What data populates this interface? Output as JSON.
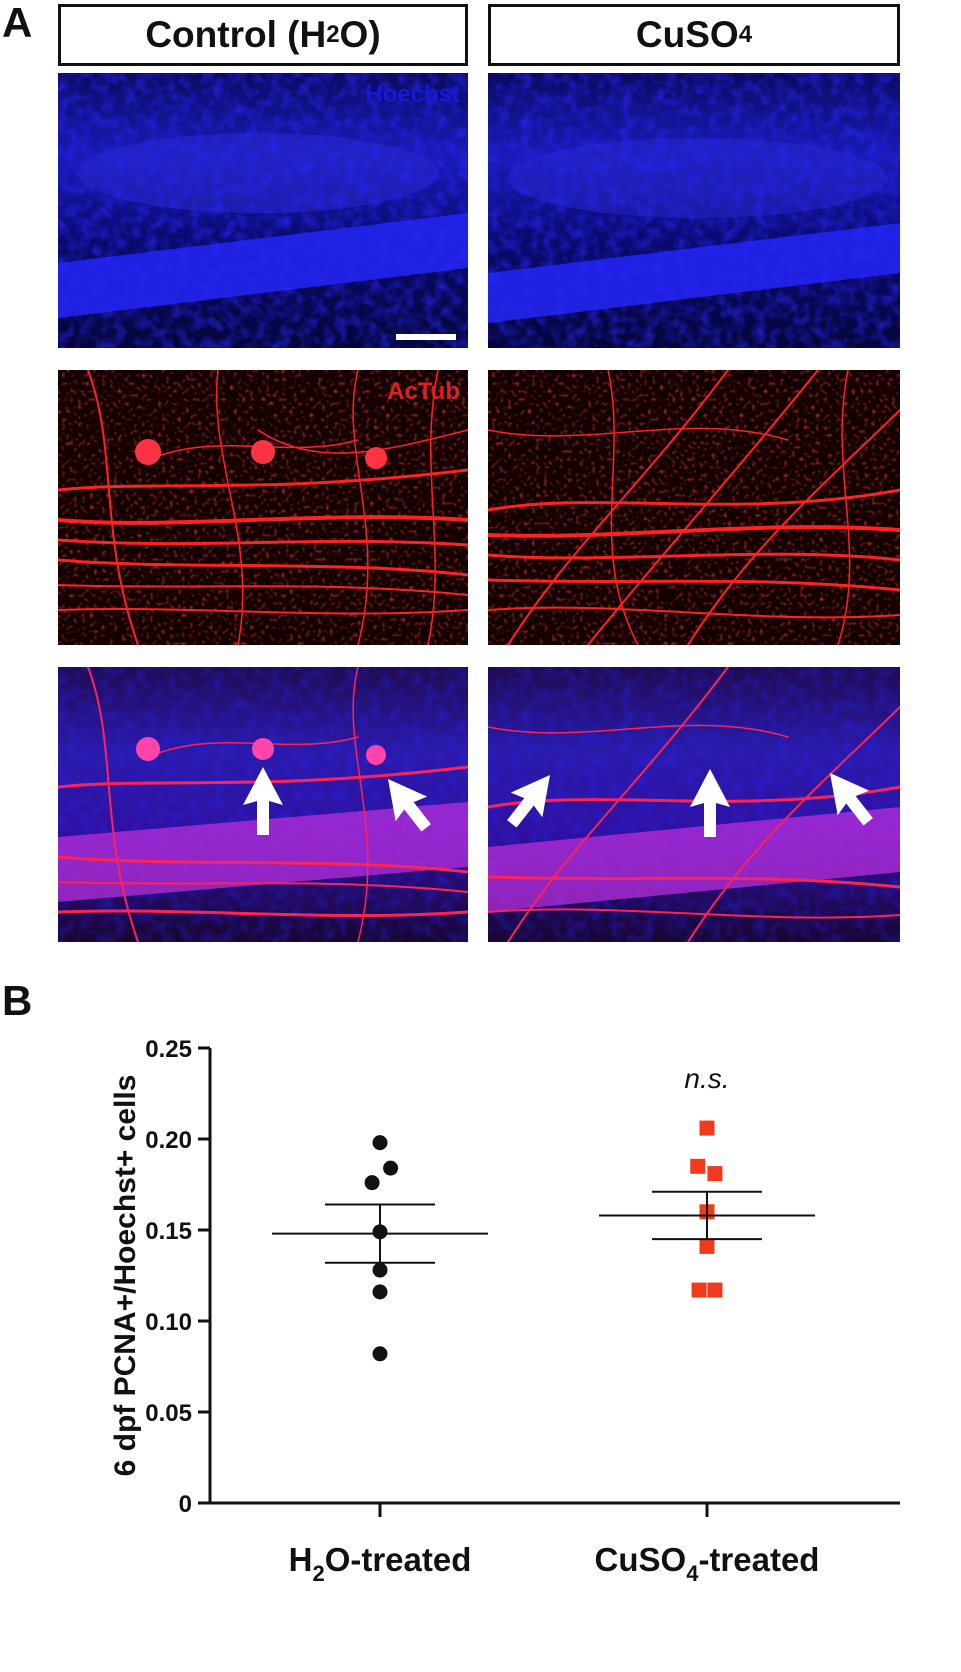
{
  "panel_a": {
    "letter": "A",
    "control_header": {
      "text": "Control (H",
      "sub": "2",
      "tail": "O)"
    },
    "treated_header": {
      "text": "CuSO",
      "sub": "4",
      "tail": ""
    },
    "hoechst_label": "Hoechst",
    "actub_label": "AcTub"
  },
  "panel_b": {
    "letter": "B"
  },
  "colors": {
    "control_points": "#111111",
    "treated_points": "#f03a1c",
    "hoechst": "#1818d8",
    "actub": "#e02020"
  },
  "chart_data": {
    "type": "scatter",
    "ylabel": "6 dpf PCNA+/Hoechst+ cells",
    "ylim": [
      0,
      0.25
    ],
    "yticks": [
      "0",
      "0.05",
      "0.10",
      "0.15",
      "0.20",
      "0.25"
    ],
    "categories": [
      "H2O-treated",
      "CuSO4-treated"
    ],
    "category_labels": [
      {
        "main": "H",
        "sub": "2",
        "tail": "O-treated"
      },
      {
        "main": "CuSO",
        "sub": "4",
        "tail": "-treated"
      }
    ],
    "series": [
      {
        "category": "H2O-treated",
        "marker": "circle",
        "values": [
          0.198,
          0.184,
          0.176,
          0.149,
          0.128,
          0.116,
          0.082
        ],
        "x_offsets": [
          0,
          0.4,
          -0.3,
          0,
          0,
          0,
          0
        ],
        "mean": 0.148,
        "sem_low": 0.132,
        "sem_high": 0.164
      },
      {
        "category": "CuSO4-treated",
        "marker": "square",
        "values": [
          0.206,
          0.185,
          0.181,
          0.16,
          0.141,
          0.117,
          0.117
        ],
        "x_offsets": [
          0,
          -0.35,
          0.3,
          0,
          0,
          -0.3,
          0.3
        ],
        "mean": 0.158,
        "sem_low": 0.145,
        "sem_high": 0.171
      }
    ],
    "annotations": [
      {
        "text": "n.s.",
        "category": "CuSO4-treated"
      }
    ]
  }
}
